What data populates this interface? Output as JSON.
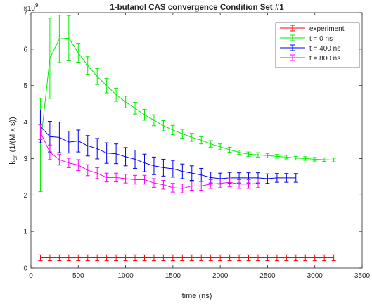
{
  "chart_data": {
    "type": "line",
    "title": "1-butanol CAS convergence Condition Set #1",
    "xlabel": "time (ns)",
    "ylabel_main": "k",
    "ylabel_sub": "on",
    "ylabel_rest": " (1/(M x s))",
    "y_multiplier": "×10",
    "y_multiplier_exp": "9",
    "xlim": [
      0,
      3500
    ],
    "ylim": [
      0,
      7
    ],
    "xticks": [
      0,
      500,
      1000,
      1500,
      2000,
      2500,
      3000,
      3500
    ],
    "yticks": [
      0,
      1,
      2,
      3,
      4,
      5,
      6,
      7
    ],
    "legend_position": "top-right",
    "series": [
      {
        "name": "experiment",
        "color": "#ff0000",
        "x": [
          100,
          200,
          300,
          400,
          500,
          600,
          700,
          800,
          900,
          1000,
          1100,
          1200,
          1300,
          1400,
          1500,
          1600,
          1700,
          1800,
          1900,
          2000,
          2100,
          2200,
          2300,
          2400,
          2500,
          2600,
          2700,
          2800,
          2900,
          3000,
          3100,
          3200
        ],
        "y": [
          0.28,
          0.28,
          0.28,
          0.28,
          0.28,
          0.28,
          0.28,
          0.28,
          0.28,
          0.28,
          0.28,
          0.28,
          0.28,
          0.28,
          0.28,
          0.28,
          0.28,
          0.28,
          0.28,
          0.28,
          0.28,
          0.28,
          0.28,
          0.28,
          0.28,
          0.28,
          0.28,
          0.28,
          0.28,
          0.28,
          0.28,
          0.28
        ],
        "err": [
          0.08,
          0.08,
          0.08,
          0.08,
          0.08,
          0.08,
          0.08,
          0.08,
          0.08,
          0.08,
          0.08,
          0.08,
          0.08,
          0.08,
          0.08,
          0.08,
          0.08,
          0.08,
          0.08,
          0.08,
          0.08,
          0.08,
          0.08,
          0.08,
          0.08,
          0.08,
          0.08,
          0.08,
          0.08,
          0.08,
          0.08,
          0.08
        ]
      },
      {
        "name": "t = 0 ns",
        "color": "#00ee00",
        "x": [
          100,
          200,
          300,
          400,
          500,
          600,
          700,
          800,
          900,
          1000,
          1100,
          1200,
          1300,
          1400,
          1500,
          1600,
          1700,
          1800,
          1900,
          2000,
          2100,
          2200,
          2300,
          2400,
          2500,
          2600,
          2700,
          2800,
          2900,
          3000,
          3100,
          3200
        ],
        "y": [
          3.37,
          5.75,
          6.28,
          6.3,
          5.9,
          5.55,
          5.25,
          5.0,
          4.75,
          4.55,
          4.38,
          4.2,
          4.05,
          3.9,
          3.78,
          3.68,
          3.58,
          3.5,
          3.4,
          3.32,
          3.24,
          3.17,
          3.12,
          3.1,
          3.08,
          3.06,
          3.04,
          3.01,
          3.0,
          2.98,
          2.97,
          2.96
        ],
        "err": [
          1.28,
          1.1,
          0.65,
          0.62,
          0.26,
          0.24,
          0.22,
          0.2,
          0.18,
          0.16,
          0.16,
          0.15,
          0.15,
          0.14,
          0.13,
          0.12,
          0.11,
          0.1,
          0.09,
          0.08,
          0.07,
          0.06,
          0.06,
          0.06,
          0.06,
          0.05,
          0.05,
          0.05,
          0.05,
          0.05,
          0.05,
          0.05
        ]
      },
      {
        "name": "t = 400 ns",
        "color": "#0000ee",
        "x": [
          100,
          200,
          300,
          400,
          500,
          600,
          700,
          800,
          900,
          1000,
          1100,
          1200,
          1300,
          1400,
          1500,
          1600,
          1700,
          1800,
          1900,
          2000,
          2100,
          2200,
          2300,
          2400,
          2500,
          2600,
          2700,
          2800
        ],
        "y": [
          3.88,
          3.6,
          3.58,
          3.45,
          3.48,
          3.35,
          3.27,
          3.15,
          3.13,
          3.05,
          2.98,
          2.88,
          2.8,
          2.75,
          2.72,
          2.65,
          2.6,
          2.55,
          2.48,
          2.45,
          2.47,
          2.47,
          2.47,
          2.47,
          2.45,
          2.47,
          2.47,
          2.47
        ],
        "err": [
          0.45,
          0.42,
          0.42,
          0.3,
          0.3,
          0.28,
          0.28,
          0.28,
          0.27,
          0.25,
          0.25,
          0.24,
          0.24,
          0.23,
          0.23,
          0.2,
          0.2,
          0.18,
          0.15,
          0.15,
          0.15,
          0.14,
          0.14,
          0.14,
          0.13,
          0.12,
          0.12,
          0.12
        ]
      },
      {
        "name": "t = 800 ns",
        "color": "#ff00ff",
        "x": [
          100,
          200,
          300,
          400,
          500,
          600,
          700,
          800,
          900,
          1000,
          1100,
          1200,
          1300,
          1400,
          1500,
          1600,
          1700,
          1800,
          1900,
          2000,
          2100,
          2200,
          2300,
          2400
        ],
        "y": [
          3.72,
          3.17,
          2.97,
          2.88,
          2.82,
          2.68,
          2.6,
          2.48,
          2.48,
          2.45,
          2.42,
          2.42,
          2.33,
          2.28,
          2.2,
          2.18,
          2.25,
          2.25,
          2.3,
          2.32,
          2.35,
          2.3,
          2.3,
          2.32
        ],
        "err": [
          0.2,
          0.2,
          0.15,
          0.13,
          0.15,
          0.15,
          0.15,
          0.12,
          0.12,
          0.12,
          0.12,
          0.12,
          0.12,
          0.12,
          0.12,
          0.12,
          0.12,
          0.12,
          0.12,
          0.12,
          0.12,
          0.12,
          0.12,
          0.12
        ]
      }
    ]
  }
}
